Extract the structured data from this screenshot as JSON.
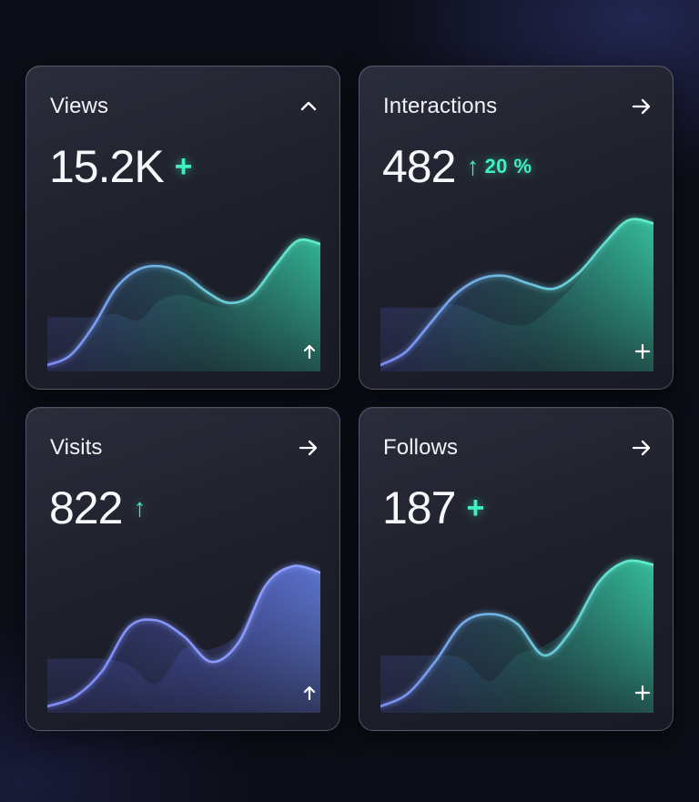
{
  "cards": [
    {
      "title": "Views",
      "value": "15.2K",
      "trend_symbol": "+",
      "trend_text": "",
      "header_icon": "chevron-up-icon",
      "corner_icon": "arrow-up-icon",
      "accent": "#4ff0c0",
      "chart_data": {
        "type": "area",
        "series": [
          {
            "values": [
              0.04,
              0.1,
              0.28,
              0.52,
              0.64,
              0.66,
              0.61,
              0.5,
              0.43,
              0.48,
              0.66,
              0.82,
              0.8
            ]
          },
          {
            "values": [
              0.34,
              0.34,
              0.34,
              0.36,
              0.32,
              0.45,
              0.48,
              0.43,
              0.4,
              0.48,
              0.66,
              0.82,
              0.8
            ]
          }
        ],
        "ylim": [
          0,
          1
        ]
      }
    },
    {
      "title": "Interactions",
      "value": "482",
      "trend_symbol": "↑",
      "trend_text": "20 %",
      "header_icon": "arrow-right-icon",
      "corner_icon": "plus-icon",
      "accent": "#4ff0c0",
      "chart_data": {
        "type": "area",
        "series": [
          {
            "values": [
              0.04,
              0.12,
              0.3,
              0.48,
              0.58,
              0.6,
              0.55,
              0.52,
              0.62,
              0.8,
              0.95,
              0.93
            ]
          },
          {
            "values": [
              0.4,
              0.4,
              0.4,
              0.42,
              0.36,
              0.3,
              0.3,
              0.42,
              0.58,
              0.8,
              0.95,
              0.93
            ]
          }
        ],
        "ylim": [
          0,
          1
        ]
      }
    },
    {
      "title": "Visits",
      "value": "822",
      "trend_symbol": "↑",
      "trend_text": "",
      "header_icon": "arrow-right-icon",
      "corner_icon": "arrow-up-icon",
      "accent": "#4ff0c0",
      "chart_data": {
        "type": "area",
        "series": [
          {
            "values": [
              0.04,
              0.1,
              0.26,
              0.54,
              0.58,
              0.48,
              0.32,
              0.44,
              0.8,
              0.92,
              0.88
            ]
          },
          {
            "values": [
              0.34,
              0.34,
              0.34,
              0.3,
              0.18,
              0.4,
              0.4,
              0.5,
              0.8,
              0.92,
              0.88
            ]
          }
        ],
        "ylim": [
          0,
          1
        ]
      }
    },
    {
      "title": "Follows",
      "value": "187",
      "trend_symbol": "+",
      "trend_text": "",
      "header_icon": "arrow-right-icon",
      "corner_icon": "plus-icon",
      "accent": "#4ff0c0",
      "chart_data": {
        "type": "area",
        "series": [
          {
            "values": [
              0.04,
              0.12,
              0.32,
              0.56,
              0.62,
              0.56,
              0.36,
              0.52,
              0.82,
              0.95,
              0.93
            ]
          },
          {
            "values": [
              0.36,
              0.36,
              0.36,
              0.34,
              0.2,
              0.36,
              0.42,
              0.56,
              0.82,
              0.95,
              0.93
            ]
          }
        ],
        "ylim": [
          0,
          1
        ]
      }
    }
  ],
  "colors": {
    "line_start": "#7c8cf8",
    "line_end": "#5ff0c8",
    "fill_blue": "#5a63d8",
    "fill_green": "#3be3b3",
    "trend": "#3ff0c0"
  }
}
